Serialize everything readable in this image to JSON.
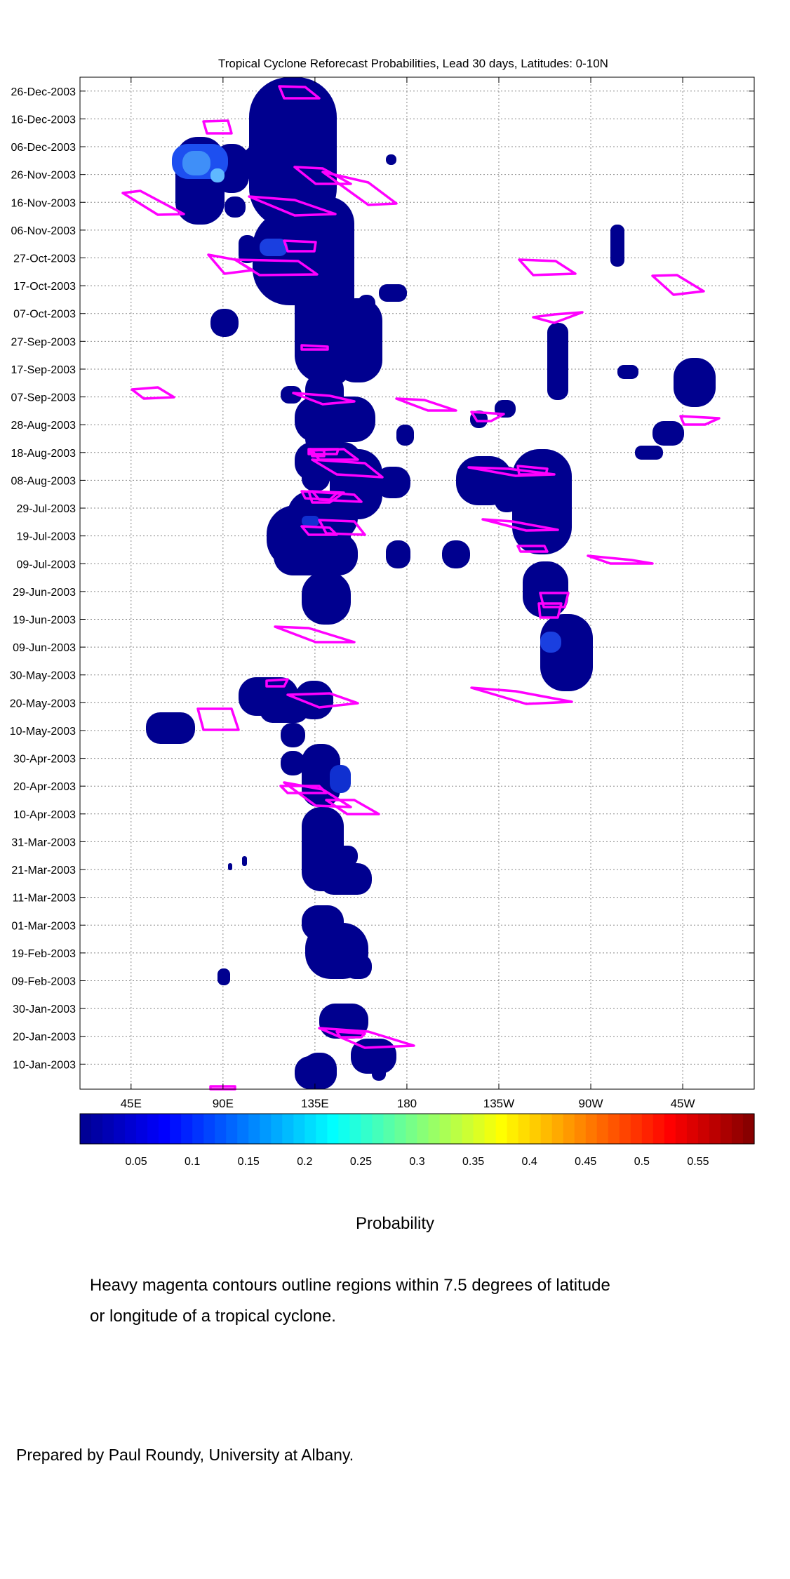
{
  "chart_data": {
    "type": "heatmap",
    "title": "Tropical Cyclone Reforecast Probabilities, Lead 30 days, Latitudes: 0-10N",
    "xlabel": "",
    "ylabel": "",
    "x_ticks": [
      "45E",
      "90E",
      "135E",
      "180",
      "135W",
      "90W",
      "45W"
    ],
    "x_tick_values": [
      45,
      90,
      135,
      180,
      225,
      270,
      315
    ],
    "x_range": [
      20,
      350
    ],
    "y_ticks": [
      "26-Dec-2003",
      "16-Dec-2003",
      "06-Dec-2003",
      "26-Nov-2003",
      "16-Nov-2003",
      "06-Nov-2003",
      "27-Oct-2003",
      "17-Oct-2003",
      "07-Oct-2003",
      "27-Sep-2003",
      "17-Sep-2003",
      "07-Sep-2003",
      "28-Aug-2003",
      "18-Aug-2003",
      "08-Aug-2003",
      "29-Jul-2003",
      "19-Jul-2003",
      "09-Jul-2003",
      "29-Jun-2003",
      "19-Jun-2003",
      "09-Jun-2003",
      "30-May-2003",
      "20-May-2003",
      "10-May-2003",
      "30-Apr-2003",
      "20-Apr-2003",
      "10-Apr-2003",
      "31-Mar-2003",
      "21-Mar-2003",
      "11-Mar-2003",
      "01-Mar-2003",
      "19-Feb-2003",
      "09-Feb-2003",
      "30-Jan-2003",
      "20-Jan-2003",
      "10-Jan-2003"
    ],
    "y_range": [
      "01-Jan-2003",
      "31-Dec-2003"
    ],
    "grid": true,
    "colorbar": {
      "ticks": [
        "0.05",
        "0.1",
        "0.15",
        "0.2",
        "0.25",
        "0.3",
        "0.35",
        "0.4",
        "0.45",
        "0.5",
        "0.55"
      ],
      "range": [
        0,
        0.6
      ],
      "label": "Probability"
    },
    "colors": {
      "low": "#00008f",
      "high": "#7f0000",
      "contour": "#ff00ff"
    }
  },
  "note_lines": [
    "Heavy magenta contours outline regions within 7.5 degrees of latitude",
    "or longitude of a tropical cyclone."
  ],
  "credit": "Prepared by Paul Roundy, University at Albany."
}
